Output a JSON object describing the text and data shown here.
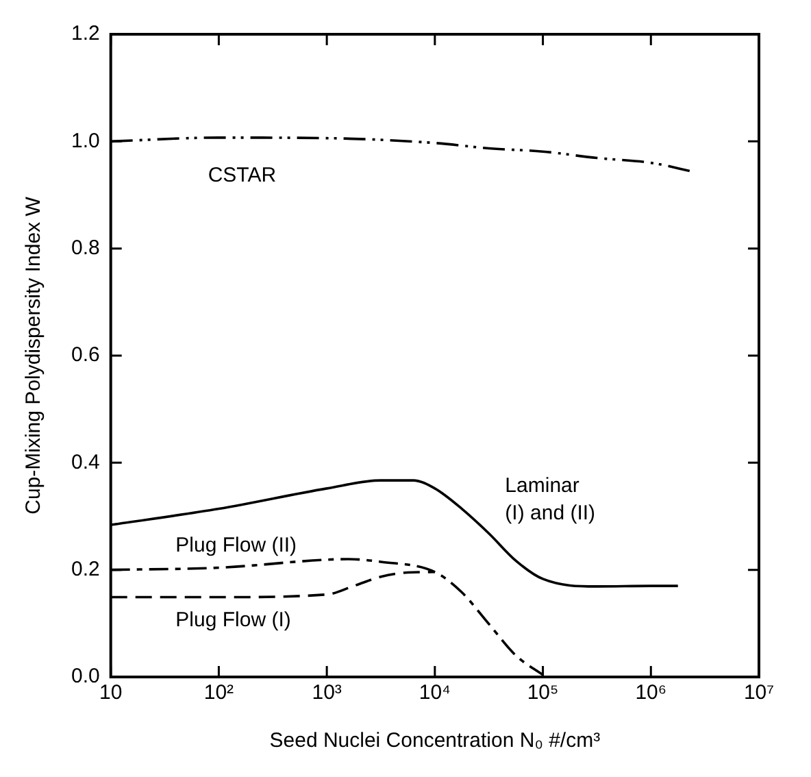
{
  "chart_data": {
    "type": "line",
    "xlabel": "Seed Nuclei Concentration N₀ #/cm³",
    "ylabel": "Cup-Mixing Polydispersity Index W",
    "log": "x",
    "grid": false,
    "legend": false,
    "marker": "none",
    "xlim": [
      10,
      10000000
    ],
    "xticks": [
      10,
      {
        "value": 100,
        "label": "10²"
      },
      {
        "value": 1000,
        "label": "10³"
      },
      {
        "value": 10000,
        "label": "10⁴"
      },
      {
        "value": 100000,
        "label": "10⁵"
      },
      {
        "value": 1000000,
        "label": "10⁶"
      },
      {
        "value": 10000000,
        "label": "10⁷"
      }
    ],
    "ylim": [
      0,
      1.2
    ],
    "yticks": [
      {
        "value": 0,
        "label": "0.0"
      },
      {
        "value": 0.2,
        "label": "0.2"
      },
      {
        "value": 0.4,
        "label": "0.4"
      },
      {
        "value": 0.6,
        "label": "0.6"
      },
      {
        "value": 0.8,
        "label": "0.8"
      },
      {
        "value": 1,
        "label": "1.0"
      },
      {
        "value": 1.2,
        "label": "1.2"
      }
    ],
    "series": [
      {
        "name": "CSTAR",
        "color": "#000000",
        "line_style": "dashdotdot",
        "x": [
          10,
          100,
          1000,
          10000,
          31623,
          100000,
          316228,
          1000000,
          2511886
        ],
        "values": [
          1.0,
          1.007,
          1.006,
          0.997,
          0.987,
          0.981,
          0.969,
          0.96,
          0.943
        ]
      },
      {
        "name": "Laminar (I) and (II)",
        "color": "#000000",
        "line_style": "solid",
        "x": [
          10,
          100,
          1000,
          3162,
          6310,
          10000,
          17783,
          31623,
          56234,
          100000,
          316228,
          1000000,
          1778279
        ],
        "values": [
          0.284,
          0.314,
          0.352,
          0.367,
          0.367,
          0.352,
          0.314,
          0.268,
          0.217,
          0.183,
          0.169,
          0.17,
          0.17
        ]
      },
      {
        "name": "Plug Flow (II)",
        "color": "#000000",
        "line_style": "dashdot",
        "x": [
          10,
          100,
          1000,
          1585,
          3162,
          10000,
          17783,
          31623,
          56234,
          100000
        ],
        "values": [
          0.2,
          0.204,
          0.219,
          0.22,
          0.215,
          0.196,
          0.158,
          0.099,
          0.04,
          0.004
        ]
      },
      {
        "name": "Plug Flow (I)",
        "color": "#000000",
        "line_style": "dashed",
        "x": [
          10,
          100,
          1000,
          1778,
          3162,
          5623,
          10000
        ],
        "values": [
          0.149,
          0.149,
          0.154,
          0.17,
          0.187,
          0.195,
          0.196
        ]
      }
    ]
  }
}
